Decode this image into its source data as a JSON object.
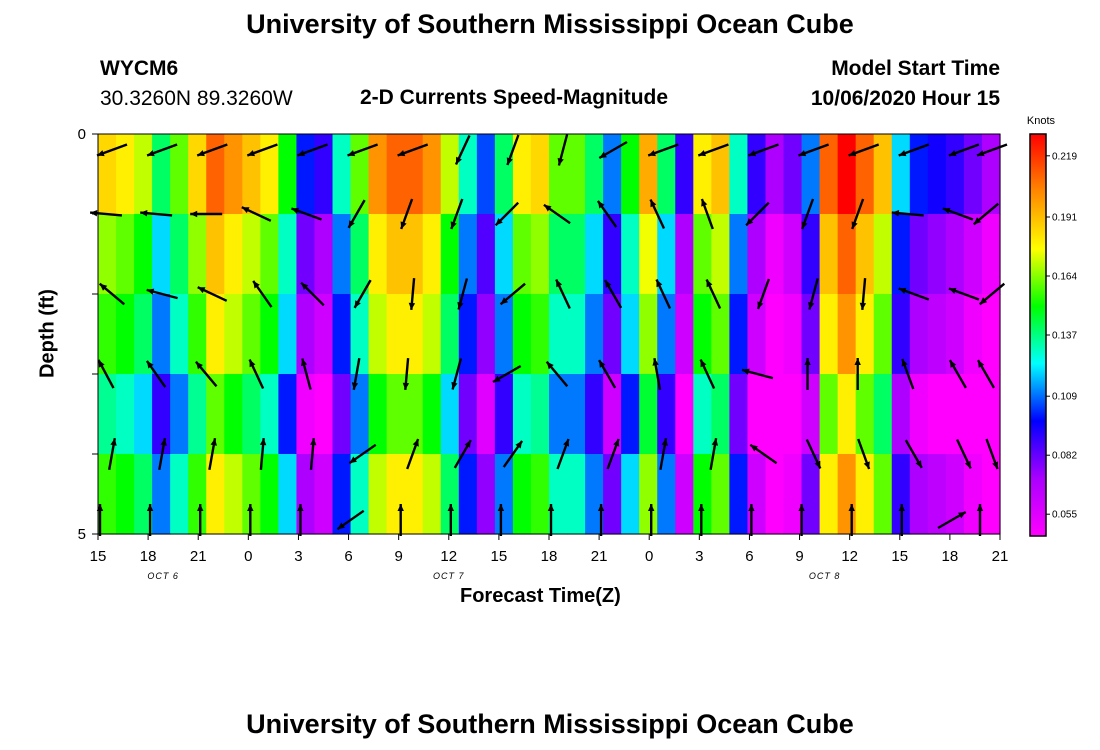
{
  "header": {
    "title": "University of Southern Mississippi Ocean Cube",
    "station_id": "WYCM6",
    "station_coords": "30.3260N 89.3260W",
    "subtitle": "2-D Currents Speed-Magnitude",
    "model_start_label": "Model Start Time",
    "model_start_value": "10/06/2020 Hour 15"
  },
  "footer": {
    "title": "University of Southern Mississippi Ocean Cube"
  },
  "chart_data": {
    "type": "heatmap",
    "title": "2-D Currents Speed-Magnitude",
    "xlabel": "Forecast Time(Z)",
    "ylabel": "Depth (ft)",
    "x_tick_labels": [
      "15",
      "18",
      "21",
      "0",
      "3",
      "6",
      "9",
      "12",
      "15",
      "18",
      "21",
      "0",
      "3",
      "6",
      "9",
      "12",
      "15",
      "18",
      "21"
    ],
    "date_labels": [
      "OCT 6",
      "OCT 7",
      "OCT 8"
    ],
    "y_range": [
      0,
      5
    ],
    "y_tick_labels": [
      "0",
      "5"
    ],
    "n_depth_rows": 5,
    "colorbar": {
      "unit": "Knots",
      "ticks": [
        "0.219",
        "0.191",
        "0.164",
        "0.137",
        "0.109",
        "0.082",
        "0.055"
      ],
      "range": [
        0.045,
        0.229
      ],
      "colors": [
        "#ff00ff",
        "#aa00ff",
        "#0000ff",
        "#00ffff",
        "#00ff00",
        "#ffff00",
        "#ff8800",
        "#ff0000"
      ]
    },
    "speed_profile": [
      0.175,
      0.17,
      0.16,
      0.13,
      0.15,
      0.175,
      0.2,
      0.19,
      0.18,
      0.17,
      0.14,
      0.09,
      0.08,
      0.12,
      0.15,
      0.19,
      0.2,
      0.2,
      0.19,
      0.16,
      0.12,
      0.095,
      0.13,
      0.17,
      0.175,
      0.15,
      0.15,
      0.13,
      0.1,
      0.14,
      0.185,
      0.13,
      0.08,
      0.17,
      0.18,
      0.12,
      0.08,
      0.06,
      0.07,
      0.1,
      0.2,
      0.22,
      0.2,
      0.18,
      0.11,
      0.09,
      0.085,
      0.08,
      0.07,
      0.06
    ],
    "depth_offsets": [
      0.01,
      -0.01,
      -0.02,
      -0.04,
      -0.02
    ],
    "vectors": {
      "columns": 19,
      "rows": 5,
      "angles_deg": [
        [
          200,
          200,
          200,
          200,
          200,
          200,
          200,
          245,
          250,
          255,
          210,
          200,
          200,
          200,
          200,
          200,
          200,
          200,
          200
        ],
        [
          175,
          175,
          180,
          155,
          160,
          240,
          250,
          250,
          225,
          145,
          125,
          115,
          110,
          225,
          250,
          250,
          175,
          160,
          220
        ],
        [
          140,
          165,
          155,
          125,
          135,
          240,
          265,
          255,
          220,
          115,
          120,
          115,
          115,
          250,
          255,
          265,
          160,
          160,
          220
        ],
        [
          118,
          125,
          130,
          115,
          105,
          260,
          265,
          255,
          210,
          130,
          120,
          100,
          115,
          165,
          90,
          90,
          110,
          120,
          120
        ],
        [
          80,
          80,
          80,
          85,
          85,
          215,
          70,
          60,
          55,
          70,
          70,
          80,
          80,
          145,
          295,
          290,
          300,
          295,
          290
        ]
      ],
      "bottom_row_angles_deg": [
        90,
        90,
        90,
        90,
        90,
        215,
        90,
        90,
        90,
        90,
        90,
        90,
        90,
        90,
        90,
        90,
        90,
        30,
        90
      ]
    }
  }
}
